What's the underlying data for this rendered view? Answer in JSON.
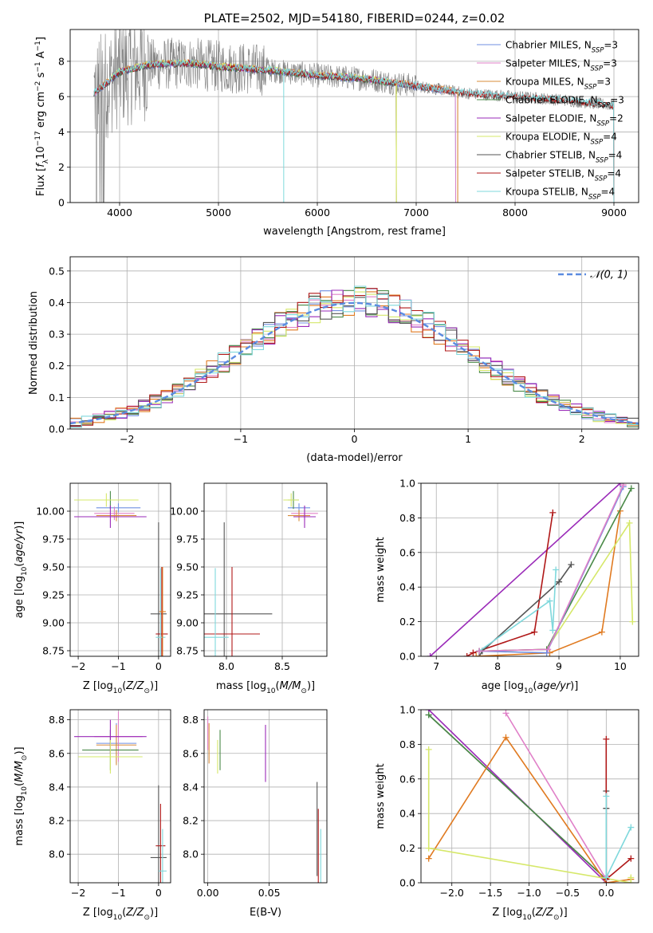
{
  "colors": {
    "chabrier_miles": "#6f8fe0",
    "salpeter_miles": "#e080c8",
    "kroupa_miles": "#d88c3a",
    "chabrier_elodie": "#4a8a48",
    "salpeter_elodie": "#9a2ab8",
    "kroupa_elodie": "#d6e86a",
    "chabrier_stelib": "#555555",
    "salpeter_stelib": "#b01818",
    "kroupa_stelib": "#7fd8dc",
    "normal": "#5b8be0",
    "orange": "#e07a20"
  },
  "chart_data": [
    {
      "id": "spectrum",
      "type": "line",
      "title": "PLATE=2502, MJD=54180, FIBERID=0244, z=0.02",
      "xlabel": "wavelength [Angstrom, rest frame]",
      "ylabel": "Flux [f_λ10^-17 erg cm^-2 s^-1 A^-1]",
      "xlim": [
        3500,
        9250
      ],
      "ylim": [
        0,
        9.8
      ],
      "xticks": [
        4000,
        5000,
        6000,
        7000,
        8000,
        9000
      ],
      "yticks": [
        0,
        2,
        4,
        6,
        8
      ],
      "legend_position": "top-right",
      "series": [
        {
          "name": "Chabrier MILES, N_SSP=3",
          "key": "chabrier_miles",
          "range": [
            3740,
            7400
          ]
        },
        {
          "name": "Salpeter MILES, N_SSP=3",
          "key": "salpeter_miles",
          "range": [
            3740,
            7400
          ]
        },
        {
          "name": "Kroupa MILES, N_SSP=3",
          "key": "kroupa_miles",
          "range": [
            3740,
            7420
          ]
        },
        {
          "name": "Chabrier ELODIE, N_SSP=3",
          "key": "chabrier_elodie",
          "range": [
            3900,
            6800
          ]
        },
        {
          "name": "Salpeter ELODIE, N_SSP=2",
          "key": "salpeter_elodie",
          "range": [
            3900,
            6800
          ]
        },
        {
          "name": "Kroupa ELODIE, N_SSP=4",
          "key": "kroupa_elodie",
          "range": [
            3900,
            6800
          ]
        },
        {
          "name": "Chabrier STELIB, N_SSP=4",
          "key": "chabrier_stelib",
          "range": [
            3740,
            9000
          ]
        },
        {
          "name": "Salpeter STELIB, N_SSP=4",
          "key": "salpeter_stelib",
          "range": [
            3740,
            9000
          ]
        },
        {
          "name": "Kroupa STELIB, N_SSP=4",
          "key": "kroupa_stelib",
          "range": [
            3740,
            9000
          ]
        }
      ],
      "legend": [
        {
          "pre": "Chabrier MILES, N",
          "sub": "SSP",
          "post": "=3",
          "key": "chabrier_miles"
        },
        {
          "pre": "Salpeter MILES, N",
          "sub": "SSP",
          "post": "=3",
          "key": "salpeter_miles"
        },
        {
          "pre": "Kroupa MILES, N",
          "sub": "SSP",
          "post": "=3",
          "key": "kroupa_miles"
        },
        {
          "pre": "Chabrier ELODIE, N",
          "sub": "SSP",
          "post": "=3",
          "key": "chabrier_elodie"
        },
        {
          "pre": "Salpeter ELODIE, N",
          "sub": "SSP",
          "post": "=2",
          "key": "salpeter_elodie"
        },
        {
          "pre": "Kroupa ELODIE, N",
          "sub": "SSP",
          "post": "=4",
          "key": "kroupa_elodie"
        },
        {
          "pre": "Chabrier STELIB, N",
          "sub": "SSP",
          "post": "=4",
          "key": "chabrier_stelib"
        },
        {
          "pre": "Salpeter STELIB, N",
          "sub": "SSP",
          "post": "=4",
          "key": "salpeter_stelib"
        },
        {
          "pre": "Kroupa STELIB, N",
          "sub": "SSP",
          "post": "=4",
          "key": "kroupa_stelib"
        }
      ],
      "approx_continuum": [
        [
          3740,
          6.2
        ],
        [
          3900,
          6.9
        ],
        [
          4000,
          7.4
        ],
        [
          4300,
          7.8
        ],
        [
          4700,
          7.9
        ],
        [
          5000,
          7.7
        ],
        [
          5500,
          7.5
        ],
        [
          6000,
          7.2
        ],
        [
          6500,
          7.0
        ],
        [
          7000,
          6.6
        ],
        [
          7500,
          6.2
        ],
        [
          8000,
          6.0
        ],
        [
          8500,
          5.8
        ],
        [
          9000,
          5.5
        ]
      ]
    },
    {
      "id": "residuals",
      "type": "line",
      "xlabel": "(data-model)/error",
      "ylabel": "Normed distribution",
      "xlim": [
        -2.5,
        2.5
      ],
      "ylim": [
        0,
        0.545
      ],
      "xticks": [
        -2,
        -1,
        0,
        1,
        2
      ],
      "yticks": [
        0.0,
        0.1,
        0.2,
        0.3,
        0.4,
        0.5
      ],
      "legend": "𝒩(0, 1)",
      "legend_position": "top-right",
      "bin_width": 0.1
    },
    {
      "id": "age_vs_Z",
      "type": "scatter",
      "xlabel": "Z [log10(Z/Z⊙)]",
      "ylabel": "age [log10(age/yr)]",
      "xlim": [
        -2.2,
        0.3
      ],
      "ylim": [
        8.7,
        10.25
      ],
      "xticks": [
        -2,
        -1,
        0
      ],
      "yticks": [
        8.75,
        9.0,
        9.25,
        9.5,
        9.75,
        10.0
      ],
      "points": [
        {
          "key": "chabrier_miles",
          "x": -1.0,
          "xerr": 0.55,
          "y": 10.03,
          "yerr": 0.04
        },
        {
          "key": "salpeter_miles",
          "x": -1.1,
          "xerr": 0.5,
          "y": 9.98,
          "yerr": 0.06
        },
        {
          "key": "kroupa_miles",
          "x": -1.05,
          "xerr": 0.5,
          "y": 9.96,
          "yerr": 0.05
        },
        {
          "key": "chabrier_elodie",
          "x": -1.2,
          "xerr": 0.5,
          "y": 10.1,
          "yerr": 0.08
        },
        {
          "key": "salpeter_elodie",
          "x": -1.2,
          "xerr": 0.9,
          "y": 9.95,
          "yerr": 0.1
        },
        {
          "key": "kroupa_elodie",
          "x": -1.3,
          "xerr": 0.8,
          "y": 10.1,
          "yerr": 0.06
        },
        {
          "key": "chabrier_stelib",
          "x": 0.0,
          "xerr": 0.2,
          "y": 9.08,
          "yerr": 0.82
        },
        {
          "key": "salpeter_stelib",
          "x": 0.08,
          "xerr": 0.15,
          "y": 8.9,
          "yerr": 0.6
        },
        {
          "key": "kroupa_stelib",
          "x": 0.05,
          "xerr": 0.12,
          "y": 8.87,
          "yerr": 0.62
        },
        {
          "key": "orange",
          "x": 0.1,
          "xerr": 0.08,
          "y": 9.1,
          "yerr": 0.4
        }
      ]
    },
    {
      "id": "age_vs_mass",
      "type": "scatter",
      "xlabel": "mass [log10(M/M⊙)]",
      "ylabel": "",
      "xlim": [
        7.8,
        8.9
      ],
      "ylim": [
        8.7,
        10.25
      ],
      "xticks": [
        8.0,
        8.5
      ],
      "yticks": [
        8.75,
        9.0,
        9.25,
        9.5,
        9.75,
        10.0
      ],
      "points": [
        {
          "key": "chabrier_miles",
          "x": 8.65,
          "xerr": 0.1,
          "y": 10.03,
          "yerr": 0.04
        },
        {
          "key": "salpeter_miles",
          "x": 8.7,
          "xerr": 0.12,
          "y": 9.98,
          "yerr": 0.06
        },
        {
          "key": "kroupa_miles",
          "x": 8.65,
          "xerr": 0.1,
          "y": 9.96,
          "yerr": 0.05
        },
        {
          "key": "chabrier_elodie",
          "x": 8.6,
          "xerr": 0.05,
          "y": 10.1,
          "yerr": 0.08
        },
        {
          "key": "salpeter_elodie",
          "x": 8.7,
          "xerr": 0.1,
          "y": 9.95,
          "yerr": 0.1
        },
        {
          "key": "kroupa_elodie",
          "x": 8.58,
          "xerr": 0.07,
          "y": 10.1,
          "yerr": 0.06
        },
        {
          "key": "chabrier_stelib",
          "x": 7.98,
          "xerr": 0.43,
          "y": 9.08,
          "yerr": 0.82
        },
        {
          "key": "salpeter_stelib",
          "x": 8.05,
          "xerr": 0.25,
          "y": 8.9,
          "yerr": 0.6
        },
        {
          "key": "kroupa_stelib",
          "x": 7.9,
          "xerr": 0.12,
          "y": 8.87,
          "yerr": 0.62
        }
      ]
    },
    {
      "id": "mw_vs_age",
      "type": "line",
      "xlabel": "age  [log10(age/yr)]",
      "ylabel": "mass weight",
      "xlim": [
        6.75,
        10.3
      ],
      "ylim": [
        0,
        1.0
      ],
      "xticks": [
        7,
        8,
        9,
        10
      ],
      "yticks": [
        0.0,
        0.2,
        0.4,
        0.6,
        0.8,
        1.0
      ],
      "series": [
        {
          "key": "salpeter_elodie",
          "x": [
            6.9,
            10.0
          ],
          "y": [
            0.0,
            1.0
          ]
        },
        {
          "key": "salpeter_stelib",
          "x": [
            7.5,
            7.6,
            8.6,
            8.9
          ],
          "y": [
            0.0,
            0.02,
            0.14,
            0.83
          ]
        },
        {
          "key": "chabrier_stelib",
          "x": [
            7.7,
            7.75,
            9.0,
            9.2
          ],
          "y": [
            0.0,
            0.03,
            0.43,
            0.53
          ]
        },
        {
          "key": "kroupa_stelib",
          "x": [
            7.7,
            8.85,
            8.9,
            8.95
          ],
          "y": [
            0.03,
            0.32,
            0.15,
            0.5
          ]
        },
        {
          "key": "orange",
          "x": [
            7.65,
            8.85,
            9.7,
            10.0
          ],
          "y": [
            0.0,
            0.02,
            0.14,
            0.84
          ]
        },
        {
          "key": "kroupa_elodie",
          "x": [
            7.7,
            8.8,
            10.15,
            10.2
          ],
          "y": [
            0.03,
            0.04,
            0.77,
            0.2
          ]
        },
        {
          "key": "chabrier_elodie",
          "x": [
            7.7,
            8.8,
            10.18
          ],
          "y": [
            0.03,
            0.04,
            0.97
          ]
        },
        {
          "key": "chabrier_miles",
          "x": [
            7.7,
            8.8,
            10.05
          ],
          "y": [
            0.03,
            0.02,
            0.98
          ]
        },
        {
          "key": "salpeter_miles",
          "x": [
            7.7,
            8.82,
            10.05
          ],
          "y": [
            0.03,
            0.04,
            0.99
          ]
        }
      ]
    },
    {
      "id": "mass_vs_Z",
      "type": "scatter",
      "xlabel": "Z [log10(Z/Z⊙)]",
      "ylabel": "mass [log10(M/M⊙)]",
      "xlim": [
        -2.2,
        0.3
      ],
      "ylim": [
        7.83,
        8.86
      ],
      "xticks": [
        -2,
        -1,
        0
      ],
      "yticks": [
        8.0,
        8.2,
        8.4,
        8.6,
        8.8
      ],
      "points": [
        {
          "key": "chabrier_miles",
          "x": -1.05,
          "xerr": 0.5,
          "y": 8.66,
          "yerr": 0.12
        },
        {
          "key": "salpeter_miles",
          "x": -1.0,
          "xerr": 0.6,
          "y": 8.7,
          "yerr": 0.15
        },
        {
          "key": "kroupa_miles",
          "x": -1.05,
          "xerr": 0.5,
          "y": 8.65,
          "yerr": 0.12
        },
        {
          "key": "chabrier_elodie",
          "x": -1.2,
          "xerr": 0.7,
          "y": 8.62,
          "yerr": 0.12
        },
        {
          "key": "salpeter_elodie",
          "x": -1.2,
          "xerr": 0.9,
          "y": 8.7,
          "yerr": 0.1
        },
        {
          "key": "kroupa_elodie",
          "x": -1.2,
          "xerr": 0.8,
          "y": 8.58,
          "yerr": 0.1
        },
        {
          "key": "chabrier_stelib",
          "x": 0.0,
          "xerr": 0.2,
          "y": 7.98,
          "yerr": 0.43
        },
        {
          "key": "salpeter_stelib",
          "x": 0.05,
          "xerr": 0.12,
          "y": 8.05,
          "yerr": 0.25
        },
        {
          "key": "kroupa_stelib",
          "x": 0.1,
          "xerr": 0.1,
          "y": 7.9,
          "yerr": 0.25
        }
      ]
    },
    {
      "id": "mass_vs_ebv",
      "type": "scatter",
      "xlabel": "E(B-V)",
      "ylabel": "",
      "xlim": [
        -0.003,
        0.097
      ],
      "ylim": [
        7.83,
        8.86
      ],
      "xticks": [
        0.0,
        0.05
      ],
      "yticks": [
        8.0,
        8.2,
        8.4,
        8.6,
        8.8
      ],
      "points": [
        {
          "key": "salpeter_miles",
          "x": 0.0,
          "xerr": 0,
          "y": 8.72,
          "yerr": 0.1
        },
        {
          "key": "kroupa_miles",
          "x": 0.001,
          "xerr": 0,
          "y": 8.66,
          "yerr": 0.12
        },
        {
          "key": "chabrier_elodie",
          "x": 0.01,
          "xerr": 0,
          "y": 8.62,
          "yerr": 0.12
        },
        {
          "key": "kroupa_elodie",
          "x": 0.008,
          "xerr": 0,
          "y": 8.58,
          "yerr": 0.1
        },
        {
          "key": "salpeter_elodie",
          "x": 0.047,
          "xerr": 0,
          "y": 8.6,
          "yerr": 0.17
        },
        {
          "key": "chabrier_stelib",
          "x": 0.089,
          "xerr": 0,
          "y": 8.15,
          "yerr": 0.28
        },
        {
          "key": "salpeter_stelib",
          "x": 0.09,
          "xerr": 0,
          "y": 8.05,
          "yerr": 0.22
        },
        {
          "key": "kroupa_stelib",
          "x": 0.092,
          "xerr": 0,
          "y": 7.97,
          "yerr": 0.18
        }
      ]
    },
    {
      "id": "mw_vs_Z",
      "type": "line",
      "xlabel": "Z [log10(Z/Z⊙)]",
      "ylabel": "mass weight",
      "xlim": [
        -2.4,
        0.42
      ],
      "ylim": [
        0,
        1.0
      ],
      "xticks": [
        -2.0,
        -1.5,
        -1.0,
        -0.5,
        0.0
      ],
      "yticks": [
        0.0,
        0.2,
        0.4,
        0.6,
        0.8,
        1.0
      ],
      "series": [
        {
          "key": "salpeter_elodie",
          "x": [
            -2.3,
            0.0
          ],
          "y": [
            1.0,
            0.0
          ]
        },
        {
          "key": "chabrier_stelib",
          "x": [
            -2.3,
            0.0,
            0.0,
            0.0
          ],
          "y": [
            0.97,
            0.02,
            0.43,
            0.53
          ]
        },
        {
          "key": "chabrier_elodie",
          "x": [
            -2.3,
            0.0,
            0.0
          ],
          "y": [
            0.97,
            0.02,
            0.03
          ]
        },
        {
          "key": "salpeter_miles",
          "x": [
            -1.3,
            0.0,
            0.0
          ],
          "y": [
            0.98,
            0.02,
            0.04
          ]
        },
        {
          "key": "orange",
          "x": [
            -2.3,
            -1.3,
            0.0,
            0.32
          ],
          "y": [
            0.14,
            0.84,
            0.0,
            0.02
          ]
        },
        {
          "key": "kroupa_elodie",
          "x": [
            -2.3,
            -2.3,
            0.32,
            0.32
          ],
          "y": [
            0.77,
            0.2,
            0.0,
            0.03
          ]
        },
        {
          "key": "salpeter_stelib",
          "x": [
            0.0,
            0.0,
            0.0,
            0.32
          ],
          "y": [
            0.83,
            0.0,
            0.02,
            0.14
          ]
        },
        {
          "key": "kroupa_stelib",
          "x": [
            0.0,
            0.0,
            0.32
          ],
          "y": [
            0.5,
            0.03,
            0.32
          ]
        }
      ]
    }
  ]
}
